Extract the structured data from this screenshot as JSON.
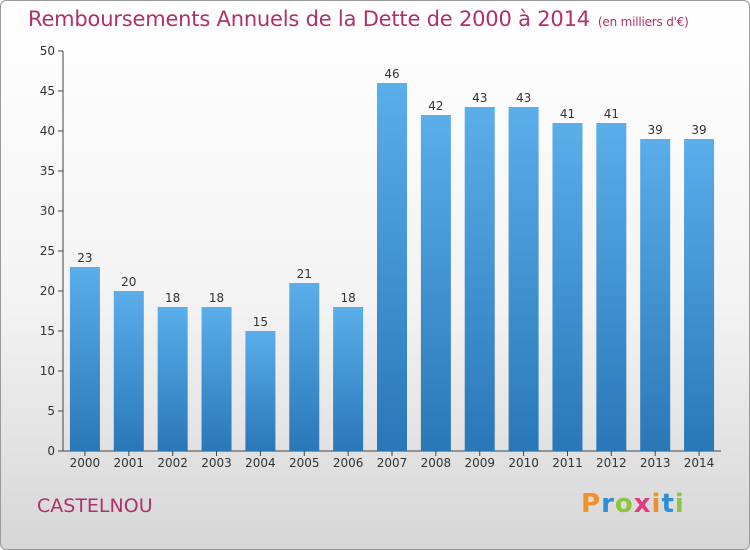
{
  "header": {
    "title": "Remboursements Annuels de la Dette de 2000 à 2014",
    "subtitle": "(en milliers d'€)"
  },
  "footer": {
    "commune": "CASTELNOU",
    "logo_text": "Proxiti"
  },
  "colors": {
    "bar_top": "#5aaeea",
    "bar_bottom": "#2a77b8",
    "title": "#b0306a"
  },
  "chart_data": {
    "type": "bar",
    "title": "Remboursements Annuels de la Dette de 2000 à 2014",
    "subtitle": "(en milliers d'€)",
    "xlabel": "",
    "ylabel": "",
    "categories": [
      "2000",
      "2001",
      "2002",
      "2003",
      "2004",
      "2005",
      "2006",
      "2007",
      "2008",
      "2009",
      "2010",
      "2011",
      "2012",
      "2013",
      "2014"
    ],
    "values": [
      23,
      20,
      18,
      18,
      15,
      21,
      18,
      46,
      42,
      43,
      43,
      41,
      41,
      39,
      39
    ],
    "ylim": [
      0,
      50
    ],
    "yticks": [
      0,
      5,
      10,
      15,
      20,
      25,
      30,
      35,
      40,
      45,
      50
    ],
    "grid": false,
    "legend": "none"
  }
}
